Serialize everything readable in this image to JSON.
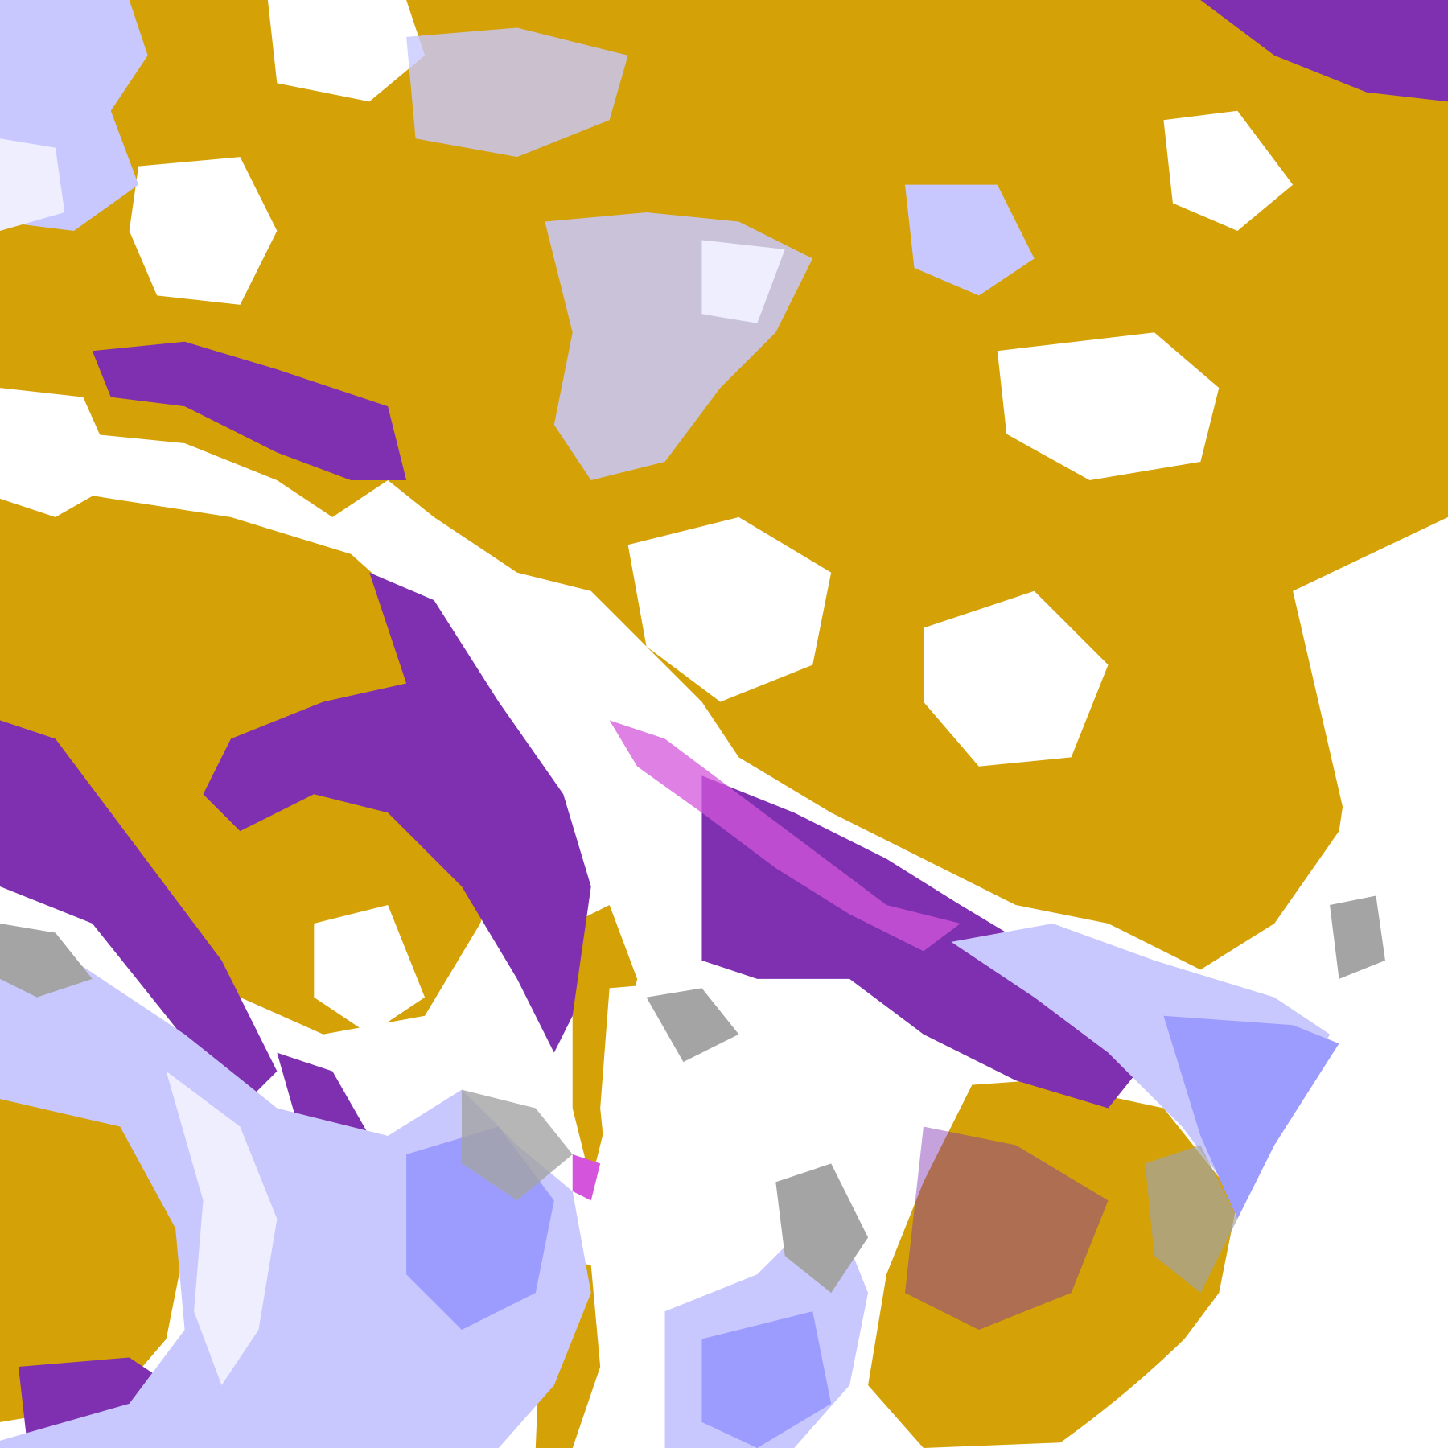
{
  "map": {
    "kind": "satellite cloud-type classification image",
    "background_color": "#ffffff",
    "classes": [
      {
        "key": "gold",
        "color": "#d4a106"
      },
      {
        "key": "purple",
        "color": "#7e30b0"
      },
      {
        "key": "magenta",
        "color": "#d455dc"
      },
      {
        "key": "lavender",
        "color": "#c8c8ff"
      },
      {
        "key": "periwinkle",
        "color": "#9c9cff"
      },
      {
        "key": "pale",
        "color": "#eeeeff"
      },
      {
        "key": "gray",
        "color": "#a4a4a4"
      }
    ]
  }
}
